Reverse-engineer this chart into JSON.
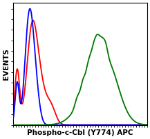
{
  "title": "",
  "xlabel": "Phospho-c-Cbl (Y774) APC",
  "ylabel": "EVENTS",
  "background_color": "#ffffff",
  "plot_bg_color": "#ffffff",
  "xlabel_fontsize": 7.5,
  "ylabel_fontsize": 7.5,
  "blue_color": "#0000ff",
  "red_color": "#ff0000",
  "green_color": "#007700",
  "line_width": 1.3,
  "figsize": [
    2.17,
    2.02
  ],
  "dpi": 100
}
